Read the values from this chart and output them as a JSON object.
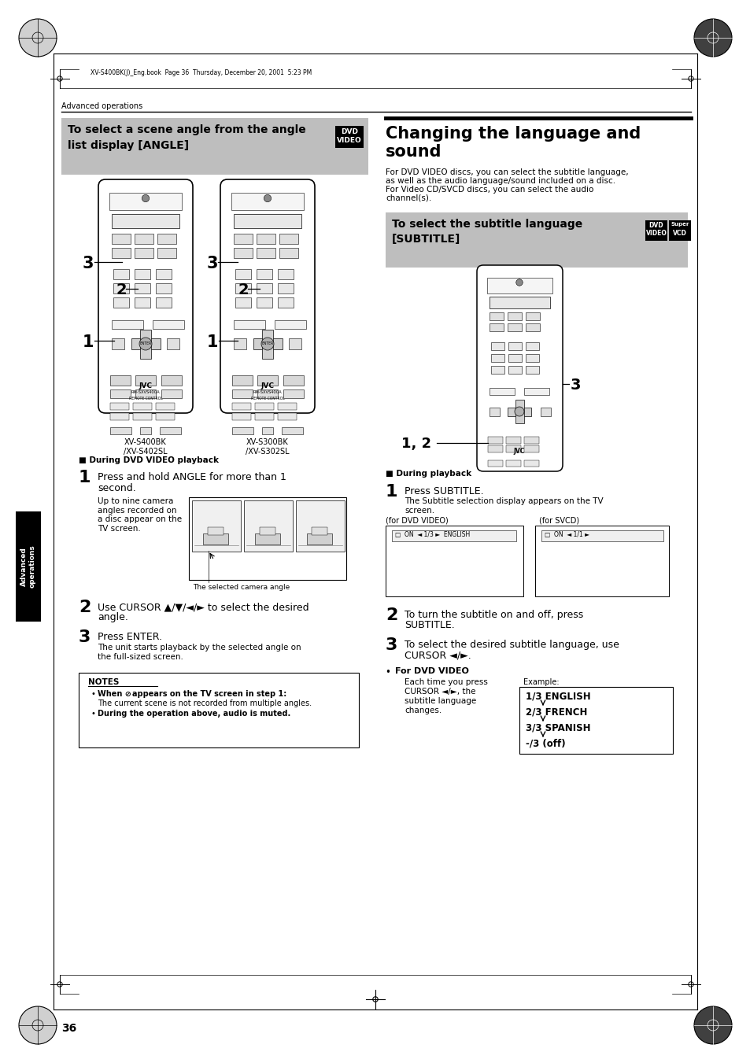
{
  "bg_color": "#ffffff",
  "page_width": 9.54,
  "page_height": 13.51,
  "header_text": "XV-S400BK(J)_Eng.book  Page 36  Thursday, December 20, 2001  5:23 PM",
  "section_label": "Advanced operations",
  "left_box_title1": "To select a scene angle from the angle",
  "left_box_title2": "list display [ANGLE]",
  "right_title_line1": "Changing the language and",
  "right_title_line2": "sound",
  "right_intro": "For DVD VIDEO discs, you can select the subtitle language,\nas well as the audio language/sound included on a disc.\nFor Video CD/SVCD discs, you can select the audio\nchannel(s).",
  "subtitle_box_title1": "To select the subtitle language",
  "subtitle_box_title2": "[SUBTITLE]",
  "during_dvd_playback": "■ During DVD VIDEO playback",
  "during_playback": "■ During playback",
  "step1_left_a": "Press and hold ANGLE for more than 1",
  "step1_left_b": "second.",
  "step1_desc_left": "Up to nine camera\nangles recorded on\na disc appear on the\nTV screen.",
  "selected_angle_caption": "The selected camera angle",
  "step2_left_a": "Use CURSOR ▲/▼/◄/► to select the desired",
  "step2_left_b": "angle.",
  "step3_left": "Press ENTER.",
  "step3_desc_left": "The unit starts playback by the selected angle on\nthe full-sized screen.",
  "notes_title": "NOTES",
  "note1_bold": "When ⊘ appears on the TV screen in step 1:",
  "note1_text": "The current scene is not recorded from multiple angles.",
  "note2_bold": "During the operation above, audio is muted.",
  "step1_right": "Press SUBTITLE.",
  "step1_right_desc": "The Subtitle selection display appears on the TV\nscreen.",
  "for_dvd_video_label": "(for DVD VIDEO)",
  "for_svcd_label": "(for SVCD)",
  "step2_right_a": "To turn the subtitle on and off, press",
  "step2_right_b": "SUBTITLE.",
  "step3_right_a": "To select the desired subtitle language, use",
  "step3_right_b": "CURSOR ◄/►.",
  "for_dvd_video_bold": "For DVD VIDEO",
  "for_dvd_video_text": "Each time you press\nCURSOR ◄/►, the\nsubtitle language\nchanges.",
  "example_label": "Example:",
  "example_lines": [
    "1/3 ENGLISH",
    "2/3 FRENCH",
    "3/3 SPANISH",
    "-/3 (off)"
  ],
  "xvs400_label": "XV-S400BK\n/XV-S402SL",
  "xvs300_label": "XV-S300BK\n/XV-S302SL",
  "page_number": "36",
  "tab_text": "Advanced\noperations",
  "left_box_bg": "#bebebe",
  "subtitle_box_bg": "#bebebe",
  "tab_bg": "#000000",
  "tab_text_color": "#ffffff",
  "dvd_badge_bg": "#000000",
  "svcd_badge_bg": "#000000"
}
